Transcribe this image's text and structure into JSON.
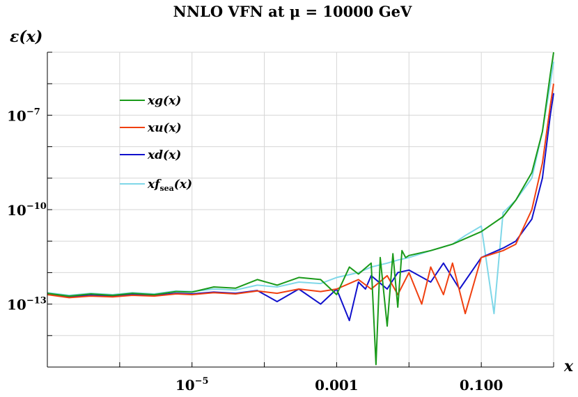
{
  "chart_data": {
    "type": "line",
    "title": "NNLO VFN at μ = 10000 GeV",
    "xlabel": "x",
    "ylabel": "ε(x)",
    "x_scale": "log",
    "y_scale": "log",
    "xlim": [
      1e-07,
      1
    ],
    "ylim": [
      1e-15,
      1e-05
    ],
    "x_ticks": [
      {
        "value": 1e-05,
        "base": "10",
        "exp": "−5"
      },
      {
        "value": 0.001,
        "base": "0.001",
        "exp": ""
      },
      {
        "value": 0.1,
        "base": "0.100",
        "exp": ""
      }
    ],
    "y_ticks": [
      {
        "value": 1e-07,
        "base": "10",
        "exp": "−7"
      },
      {
        "value": 1e-10,
        "base": "10",
        "exp": "−10"
      },
      {
        "value": 1e-13,
        "base": "10",
        "exp": "−13"
      }
    ],
    "grid": true,
    "legend_position": "top-left",
    "series": [
      {
        "name": "xg(x)",
        "color": "#1a9a1a",
        "x": [
          1e-07,
          2e-07,
          4e-07,
          8e-07,
          1.5e-06,
          3e-06,
          6e-06,
          1e-05,
          2e-05,
          4e-05,
          8e-05,
          0.00015,
          0.0003,
          0.0006,
          0.001,
          0.0015,
          0.002,
          0.003,
          0.0035,
          0.004,
          0.005,
          0.006,
          0.007,
          0.008,
          0.009,
          0.01,
          0.02,
          0.04,
          0.06,
          0.1,
          0.2,
          0.3,
          0.5,
          0.7,
          0.9,
          1.0
        ],
        "y": [
          2.2e-13,
          1.8e-13,
          2.1e-13,
          1.9e-13,
          2.2e-13,
          2e-13,
          2.5e-13,
          2.4e-13,
          3.5e-13,
          3.2e-13,
          6e-13,
          4e-13,
          7e-13,
          6e-13,
          2e-13,
          1.5e-12,
          9e-13,
          2e-12,
          1.2e-15,
          3e-12,
          2e-14,
          4e-12,
          8e-14,
          5e-12,
          3e-12,
          3.5e-12,
          5e-12,
          8e-12,
          1.2e-11,
          2e-11,
          6e-11,
          2e-10,
          1.5e-09,
          3e-08,
          2e-06,
          1e-05
        ]
      },
      {
        "name": "xu(x)",
        "color": "#f04010",
        "x": [
          1e-07,
          2e-07,
          4e-07,
          8e-07,
          1.5e-06,
          3e-06,
          6e-06,
          1e-05,
          2e-05,
          4e-05,
          8e-05,
          0.00015,
          0.0003,
          0.0006,
          0.001,
          0.002,
          0.003,
          0.005,
          0.007,
          0.01,
          0.015,
          0.02,
          0.03,
          0.04,
          0.06,
          0.1,
          0.2,
          0.3,
          0.5,
          0.7,
          0.9,
          1.0
        ],
        "y": [
          2e-13,
          1.6e-13,
          1.8e-13,
          1.7e-13,
          1.9e-13,
          1.8e-13,
          2.1e-13,
          2e-13,
          2.3e-13,
          2.1e-13,
          2.6e-13,
          2.2e-13,
          3e-13,
          2.5e-13,
          3e-13,
          6e-13,
          3e-13,
          8e-13,
          2e-13,
          1e-12,
          1e-13,
          1.5e-12,
          2e-13,
          2e-12,
          5e-14,
          3e-12,
          5e-12,
          8e-12,
          1e-10,
          3e-09,
          2e-07,
          1e-06
        ]
      },
      {
        "name": "xd(x)",
        "color": "#1010cc",
        "x": [
          1e-07,
          2e-07,
          4e-07,
          8e-07,
          1.5e-06,
          3e-06,
          6e-06,
          1e-05,
          2e-05,
          4e-05,
          8e-05,
          0.00015,
          0.0003,
          0.0006,
          0.001,
          0.0015,
          0.002,
          0.0025,
          0.003,
          0.005,
          0.007,
          0.01,
          0.02,
          0.03,
          0.05,
          0.1,
          0.2,
          0.3,
          0.5,
          0.7,
          0.9,
          1.0
        ],
        "y": [
          2.1e-13,
          1.7e-13,
          1.9e-13,
          1.8e-13,
          2e-13,
          1.9e-13,
          2.2e-13,
          2.1e-13,
          2.4e-13,
          2.2e-13,
          2.7e-13,
          1.2e-13,
          3e-13,
          1e-13,
          3e-13,
          3e-14,
          5e-13,
          3e-13,
          8e-13,
          3e-13,
          1e-12,
          1.2e-12,
          5e-13,
          2e-12,
          3e-13,
          3e-12,
          6e-12,
          1e-11,
          5e-11,
          1e-09,
          1e-07,
          5e-07
        ]
      },
      {
        "name": "xf_sea(x)",
        "color": "#7fd7e8",
        "x": [
          1e-07,
          2e-07,
          4e-07,
          8e-07,
          1.5e-06,
          3e-06,
          6e-06,
          1e-05,
          2e-05,
          4e-05,
          8e-05,
          0.00015,
          0.0003,
          0.0006,
          0.001,
          0.002,
          0.003,
          0.005,
          0.007,
          0.01,
          0.02,
          0.04,
          0.06,
          0.1,
          0.15,
          0.2,
          0.3,
          0.5,
          0.7,
          0.9,
          1.0
        ],
        "y": [
          2.3e-13,
          1.9e-13,
          2.2e-13,
          2e-13,
          2.3e-13,
          2.1e-13,
          2.6e-13,
          2.5e-13,
          3e-13,
          2.8e-13,
          4e-13,
          3.5e-13,
          5e-13,
          4.5e-13,
          7e-13,
          1e-12,
          1.5e-12,
          2e-12,
          2.5e-12,
          3e-12,
          5e-12,
          8e-12,
          1.5e-11,
          3e-11,
          5e-14,
          8e-11,
          2e-10,
          1e-09,
          3e-08,
          1e-06,
          5e-06
        ]
      }
    ]
  }
}
